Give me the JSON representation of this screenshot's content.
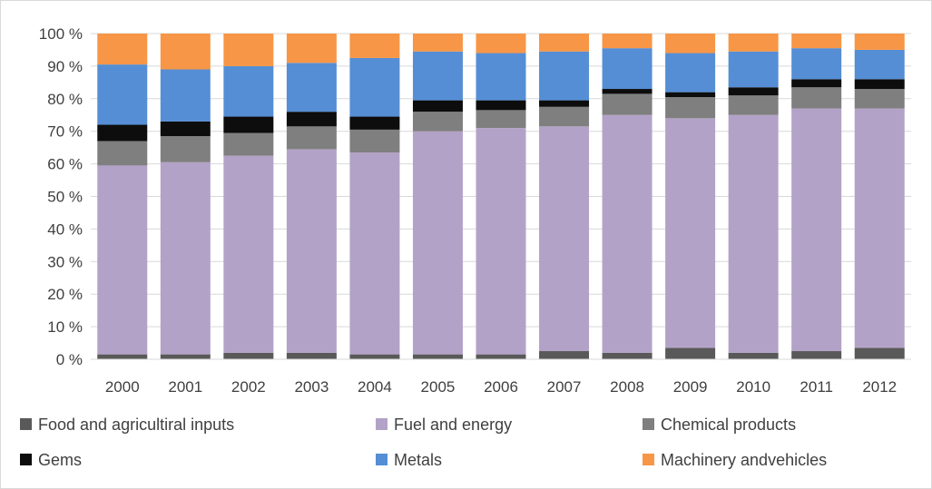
{
  "chart_data": {
    "type": "bar",
    "stacked": true,
    "percent": true,
    "title": "",
    "xlabel": "",
    "ylabel": "",
    "ylim": [
      0,
      100
    ],
    "y_ticks": [
      "0 %",
      "10 %",
      "20 %",
      "30 %",
      "40 %",
      "50 %",
      "60 %",
      "70 %",
      "80 %",
      "90 %",
      "100 %"
    ],
    "grid": "horizontal",
    "legend_position": "bottom",
    "categories": [
      "2000",
      "2001",
      "2002",
      "2003",
      "2004",
      "2005",
      "2006",
      "2007",
      "2008",
      "2009",
      "2010",
      "2011",
      "2012"
    ],
    "series": [
      {
        "name": "Food and agricultiral inputs",
        "color": "#595959",
        "values": [
          1.5,
          1.5,
          2,
          2,
          1.5,
          1.5,
          1.5,
          2.5,
          2,
          3.5,
          2,
          2.5,
          3.5
        ]
      },
      {
        "name": "Fuel and energy",
        "color": "#b3a2c7",
        "values": [
          58,
          59,
          60.5,
          62.5,
          62,
          68.5,
          69.5,
          69,
          73,
          70.5,
          73,
          74.5,
          73.5
        ]
      },
      {
        "name": "Chemical products",
        "color": "#7f7f7f",
        "values": [
          7.5,
          8,
          7,
          7,
          7,
          6,
          5.5,
          6,
          6.5,
          6.5,
          6,
          6.5,
          6
        ]
      },
      {
        "name": "Gems",
        "color": "#0d0d0d",
        "values": [
          5,
          4.5,
          5,
          4.5,
          4,
          3.5,
          3,
          2,
          1.5,
          1.5,
          2.5,
          2.5,
          3
        ]
      },
      {
        "name": "Metals",
        "color": "#558ed5",
        "values": [
          18.5,
          16,
          15.5,
          15,
          18,
          15,
          14.5,
          15,
          12.5,
          12,
          11,
          9.5,
          9
        ]
      },
      {
        "name": "Machinery andvehicles",
        "color": "#f79646",
        "values": [
          9.5,
          11,
          10,
          9,
          7.5,
          5.5,
          6,
          5.5,
          4.5,
          6,
          5.5,
          4.5,
          5
        ]
      }
    ]
  }
}
